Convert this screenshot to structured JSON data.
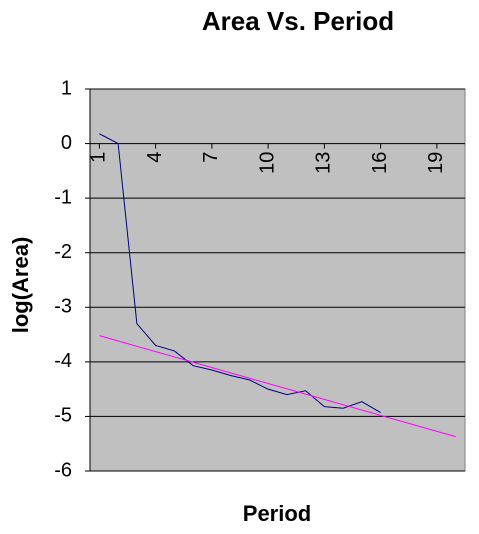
{
  "chart_data": {
    "type": "line",
    "title": "Area Vs. Period",
    "x_label": "Period",
    "y_label": "log(Area)",
    "xlim": [
      0.5,
      20.5
    ],
    "xticks": [
      1,
      4,
      7,
      10,
      13,
      16,
      19
    ],
    "ylim": [
      -6,
      1
    ],
    "yticks": [
      1,
      0,
      -1,
      -2,
      -3,
      -4,
      -5,
      -6
    ],
    "grid": true,
    "series": [
      {
        "color": "#000080",
        "x": [
          1,
          2,
          3,
          4,
          5,
          6,
          7,
          8,
          9,
          10,
          11,
          12,
          13,
          14,
          15,
          16
        ],
        "values": [
          0.18,
          0.0,
          -3.3,
          -3.7,
          -3.8,
          -4.07,
          -4.15,
          -4.25,
          -4.33,
          -4.5,
          -4.6,
          -4.53,
          -4.82,
          -4.85,
          -4.73,
          -4.93
        ]
      },
      {
        "color": "#ff00ff",
        "x": [
          1,
          20
        ],
        "values": [
          -3.52,
          -5.37
        ]
      }
    ]
  }
}
